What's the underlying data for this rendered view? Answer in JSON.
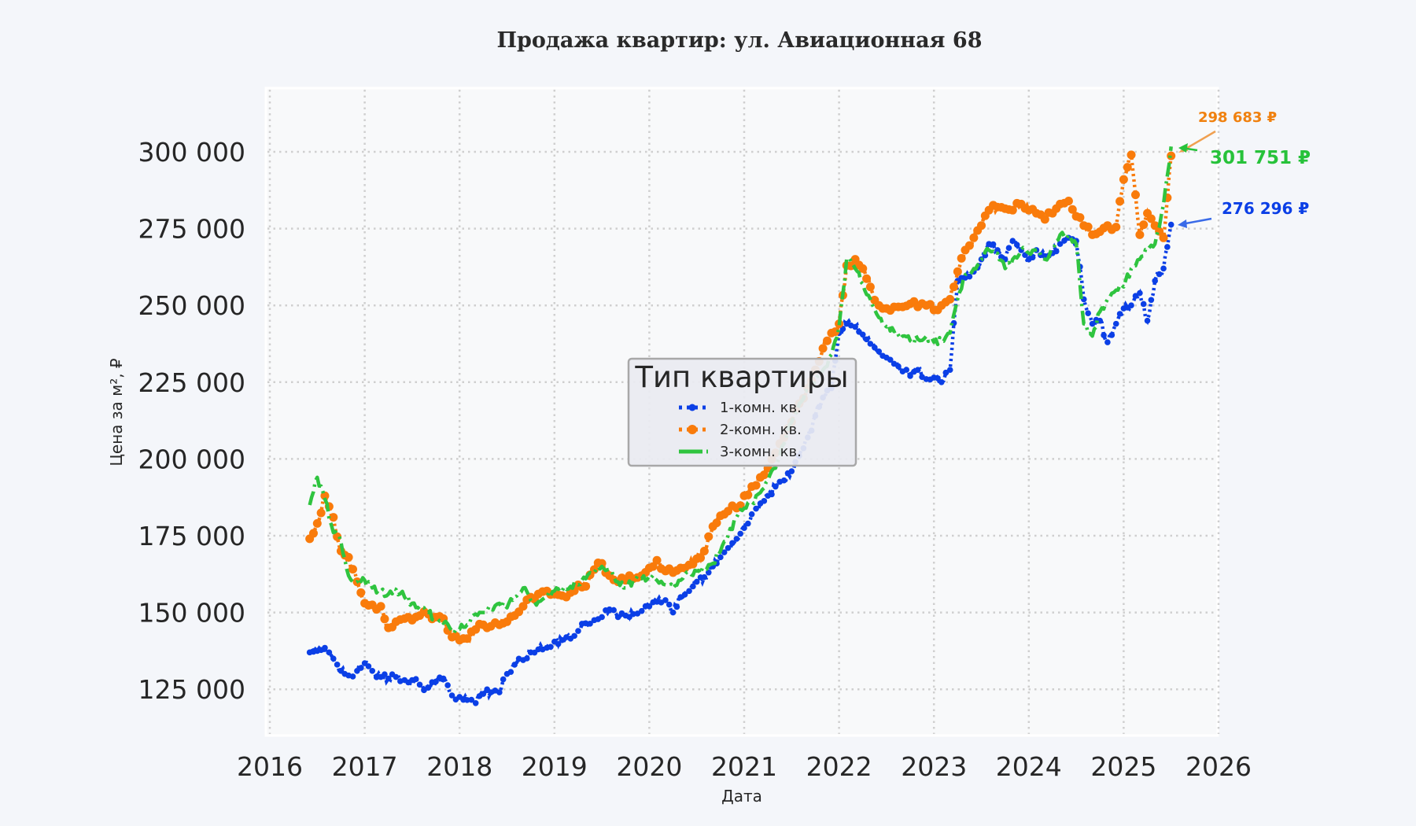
{
  "chart_data": {
    "type": "line",
    "title": "Продажа квартир: ул. Авиационная 68",
    "xlabel": "Дата",
    "ylabel": "Цена за м², ₽",
    "xlim": [
      2016,
      2026
    ],
    "ylim": [
      110000,
      320000
    ],
    "x_ticks": [
      "2016",
      "2017",
      "2018",
      "2019",
      "2020",
      "2021",
      "2022",
      "2023",
      "2024",
      "2025",
      "2026"
    ],
    "y_ticks": [
      "125 000",
      "150 000",
      "175 000",
      "200 000",
      "225 000",
      "250 000",
      "275 000",
      "300 000"
    ],
    "y_tick_values": [
      125000,
      150000,
      175000,
      200000,
      225000,
      250000,
      275000,
      300000
    ],
    "grid": true,
    "legend": {
      "title": "Тип квартиры",
      "position": "center",
      "entries": [
        "1-комн. кв.",
        "2-комн. кв.",
        "3-комн. кв."
      ]
    },
    "x": [
      2016.42,
      2016.5,
      2016.58,
      2016.67,
      2016.75,
      2016.83,
      2016.92,
      2017.0,
      2017.08,
      2017.17,
      2017.25,
      2017.33,
      2017.42,
      2017.5,
      2017.58,
      2017.67,
      2017.75,
      2017.83,
      2017.92,
      2018.0,
      2018.08,
      2018.17,
      2018.25,
      2018.33,
      2018.42,
      2018.5,
      2018.58,
      2018.67,
      2018.75,
      2018.83,
      2018.92,
      2019.0,
      2019.08,
      2019.17,
      2019.25,
      2019.33,
      2019.42,
      2019.5,
      2019.58,
      2019.67,
      2019.75,
      2019.83,
      2019.92,
      2020.0,
      2020.08,
      2020.17,
      2020.25,
      2020.33,
      2020.42,
      2020.5,
      2020.58,
      2020.67,
      2020.75,
      2020.83,
      2020.92,
      2021.0,
      2021.08,
      2021.17,
      2021.25,
      2021.33,
      2021.42,
      2021.5,
      2021.58,
      2021.67,
      2021.75,
      2021.83,
      2021.92,
      2022.0,
      2022.08,
      2022.17,
      2022.25,
      2022.33,
      2022.42,
      2022.5,
      2022.58,
      2022.67,
      2022.75,
      2022.83,
      2022.92,
      2023.0,
      2023.08,
      2023.17,
      2023.25,
      2023.33,
      2023.42,
      2023.5,
      2023.58,
      2023.67,
      2023.75,
      2023.83,
      2023.92,
      2024.0,
      2024.08,
      2024.17,
      2024.25,
      2024.33,
      2024.42,
      2024.5,
      2024.58,
      2024.67,
      2024.75,
      2024.83,
      2024.92,
      2025.0,
      2025.08,
      2025.17,
      2025.25,
      2025.33,
      2025.42,
      2025.5
    ],
    "series": [
      {
        "name": "1-комн. кв.",
        "color": "#0b3fe6",
        "style": "dotted-markers",
        "final_value": 276296,
        "values": [
          137000,
          137500,
          138500,
          135000,
          131000,
          129500,
          131000,
          133500,
          131000,
          129000,
          128500,
          129000,
          128000,
          128000,
          126500,
          125500,
          127500,
          128500,
          123000,
          122500,
          121500,
          120500,
          123500,
          124000,
          124000,
          130000,
          133000,
          134500,
          137000,
          138000,
          138500,
          140500,
          141000,
          141500,
          144000,
          146500,
          147500,
          148500,
          151000,
          148500,
          149000,
          149500,
          150500,
          152000,
          153500,
          154000,
          150000,
          155000,
          157000,
          160000,
          161500,
          165000,
          168000,
          171000,
          174000,
          177500,
          182000,
          185500,
          188000,
          191000,
          193000,
          196000,
          201000,
          207000,
          214000,
          220000,
          223000,
          241000,
          244000,
          243000,
          240500,
          237500,
          235000,
          233000,
          231000,
          228500,
          227000,
          229000,
          226000,
          226500,
          225000,
          229000,
          258000,
          259000,
          261000,
          265000,
          270000,
          268000,
          265000,
          271000,
          268000,
          265000,
          268000,
          266000,
          267000,
          270000,
          272000,
          271000,
          252000,
          244000,
          245000,
          238000,
          244000,
          249000,
          250000,
          254000,
          245000,
          258000,
          262000,
          276296
        ]
      },
      {
        "name": "2-комн. кв.",
        "color": "#f97b0b",
        "style": "dotted-circles",
        "final_value": 298683,
        "values": [
          174000,
          179000,
          188000,
          181000,
          170000,
          168000,
          160000,
          153000,
          152500,
          152000,
          145000,
          147000,
          148000,
          147500,
          149000,
          149500,
          148500,
          148000,
          142000,
          141000,
          141500,
          144500,
          146000,
          145500,
          146000,
          147000,
          149000,
          152000,
          155000,
          156000,
          157000,
          156000,
          155500,
          156500,
          159000,
          158500,
          164000,
          166000,
          162000,
          160000,
          160500,
          161000,
          162000,
          164500,
          167000,
          163500,
          163000,
          164500,
          165500,
          167500,
          170000,
          178000,
          181500,
          183000,
          184000,
          188000,
          191000,
          194000,
          197000,
          202000,
          207000,
          212000,
          218000,
          223000,
          229000,
          236000,
          241000,
          244000,
          263000,
          265000,
          262000,
          256000,
          250000,
          249000,
          249500,
          249500,
          250500,
          249500,
          250000,
          248500,
          250000,
          252000,
          261000,
          268000,
          272000,
          276000,
          281000,
          282000,
          281500,
          281000,
          283000,
          281000,
          280000,
          278000,
          280000,
          283000,
          284000,
          279000,
          276000,
          273000,
          274000,
          276000,
          275500,
          291000,
          299000,
          273000,
          280000,
          276000,
          272000,
          298683
        ]
      },
      {
        "name": "3-комн. кв.",
        "color": "#2fc43f",
        "style": "dashdot",
        "final_value": 301751,
        "values": [
          185000,
          194000,
          187000,
          176000,
          173000,
          162000,
          160000,
          160500,
          158000,
          157000,
          156000,
          157500,
          155000,
          153000,
          151000,
          150000,
          147500,
          146500,
          144000,
          144500,
          146000,
          149500,
          150000,
          151000,
          153000,
          151500,
          155000,
          158000,
          154000,
          153500,
          155000,
          157000,
          157000,
          158500,
          159000,
          161000,
          163000,
          165000,
          164000,
          160000,
          158000,
          160500,
          161000,
          162000,
          160500,
          159000,
          158000,
          160500,
          163000,
          163500,
          164000,
          166000,
          170000,
          175000,
          181000,
          184000,
          186000,
          189000,
          193000,
          197000,
          205000,
          212000,
          218000,
          222000,
          226000,
          229000,
          234000,
          243000,
          265000,
          262000,
          257000,
          252000,
          246000,
          243000,
          241500,
          240000,
          238500,
          239000,
          240000,
          238000,
          238500,
          241000,
          252000,
          260000,
          262000,
          265000,
          268000,
          267000,
          262000,
          265000,
          268000,
          267000,
          268000,
          265000,
          269000,
          273000,
          273000,
          270000,
          244000,
          240000,
          248000,
          252000,
          255000,
          256000,
          262000,
          265000,
          268000,
          270000,
          283000,
          301751
        ]
      }
    ],
    "annotations": [
      {
        "text": "298 683 ₽",
        "color": "#f0810f",
        "series": "2-комн. кв."
      },
      {
        "text": "301 751 ₽",
        "color": "#27c23a",
        "series": "3-комн. кв."
      },
      {
        "text": "276 296 ₽",
        "color": "#0b3fe6",
        "series": "1-комн. кв."
      }
    ]
  }
}
